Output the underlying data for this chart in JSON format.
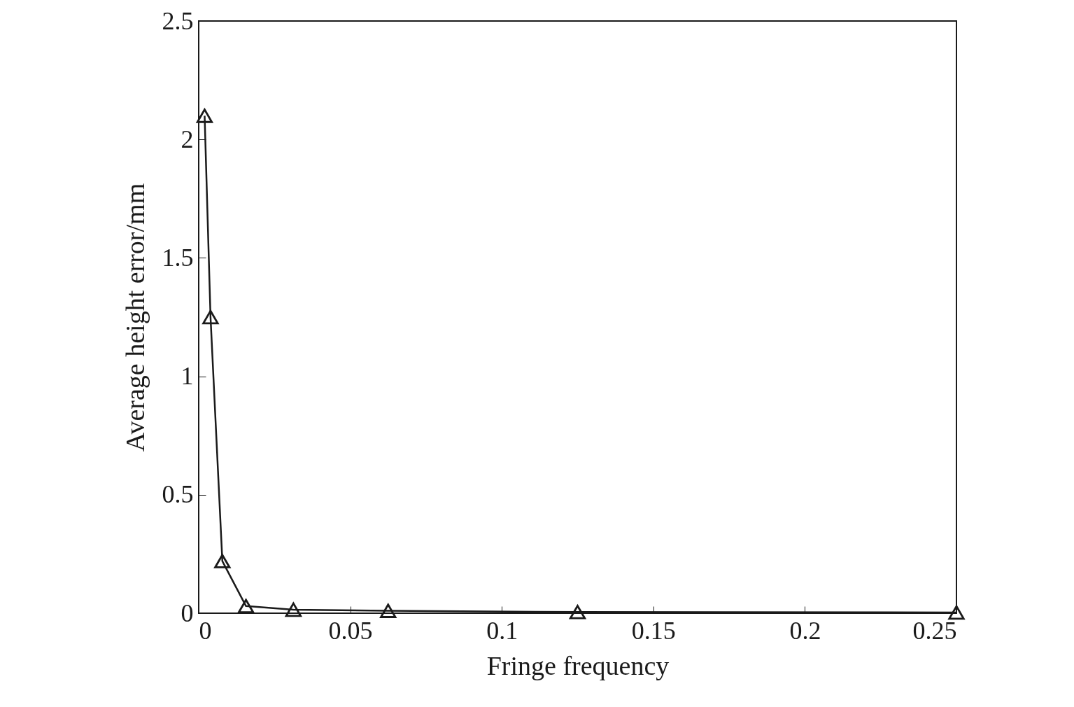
{
  "chart_data": {
    "type": "line",
    "xlabel": "Fringe frequency",
    "ylabel": "Average height error/mm",
    "x": [
      0.00195,
      0.0039,
      0.0078,
      0.0156,
      0.03125,
      0.0625,
      0.125,
      0.25
    ],
    "series": [
      {
        "color": "#1a1a1a",
        "values": [
          2.1,
          1.25,
          0.22,
          0.03,
          0.015,
          0.01,
          0.005,
          0.003
        ]
      }
    ],
    "xlim": [
      0,
      0.25
    ],
    "xticks": [
      0,
      0.05,
      0.1,
      0.15,
      0.2,
      0.25
    ],
    "ylim": [
      0,
      2.5
    ],
    "yticks": [
      0,
      0.5,
      1,
      1.5,
      2,
      2.5
    ],
    "grid": false,
    "legend": false,
    "marker": "triangle",
    "line_style": "solid"
  }
}
